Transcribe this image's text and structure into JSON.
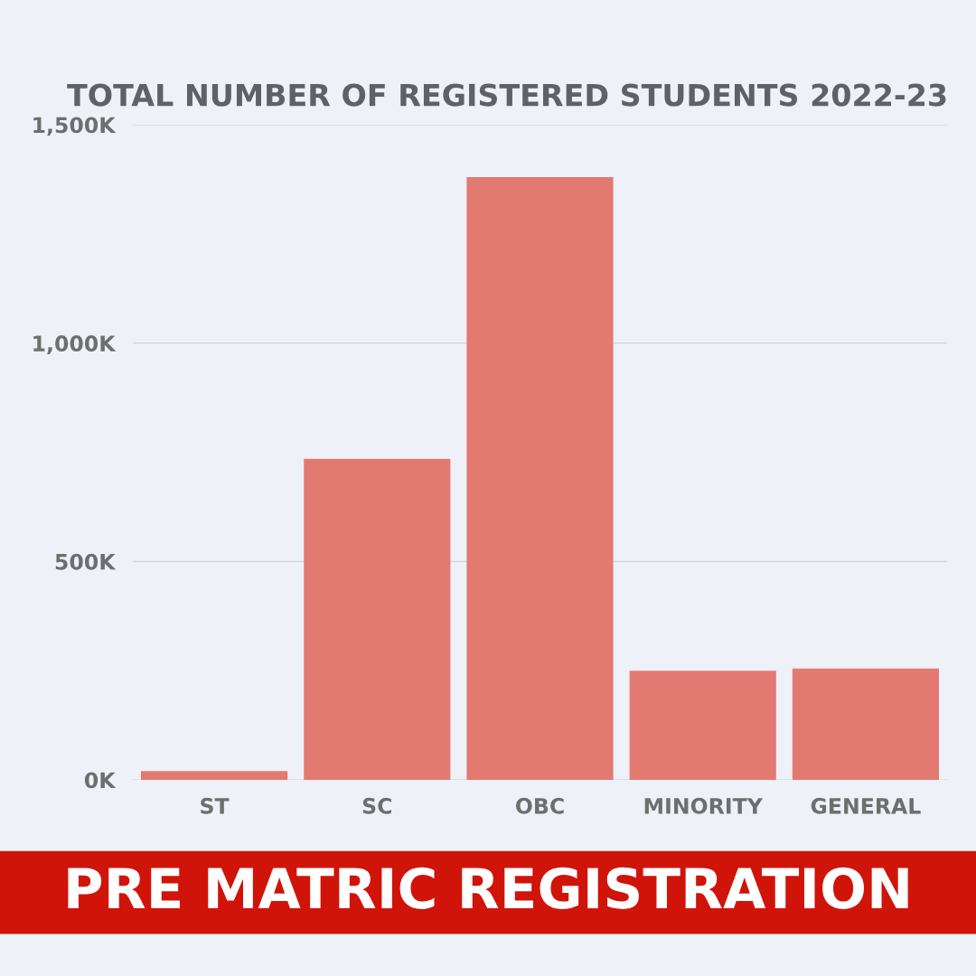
{
  "chart_data": {
    "type": "bar",
    "title": "TOTAL NUMBER OF REGISTERED STUDENTS 2022-23",
    "subtitle": "PRE MATRIC REGISTRATION",
    "categories": [
      "ST",
      "SC",
      "OBC",
      "MINORITY",
      "GENERAL"
    ],
    "values": [
      20000,
      735000,
      1380000,
      250000,
      255000
    ],
    "color": "#e27a72",
    "ylim": [
      0,
      1500000
    ],
    "yticks": [
      {
        "value": 0,
        "label": "0K"
      },
      {
        "value": 500000,
        "label": "500K"
      },
      {
        "value": 1000000,
        "label": "1,000K"
      },
      {
        "value": 1500000,
        "label": "1,500K"
      }
    ],
    "grid": "y"
  }
}
